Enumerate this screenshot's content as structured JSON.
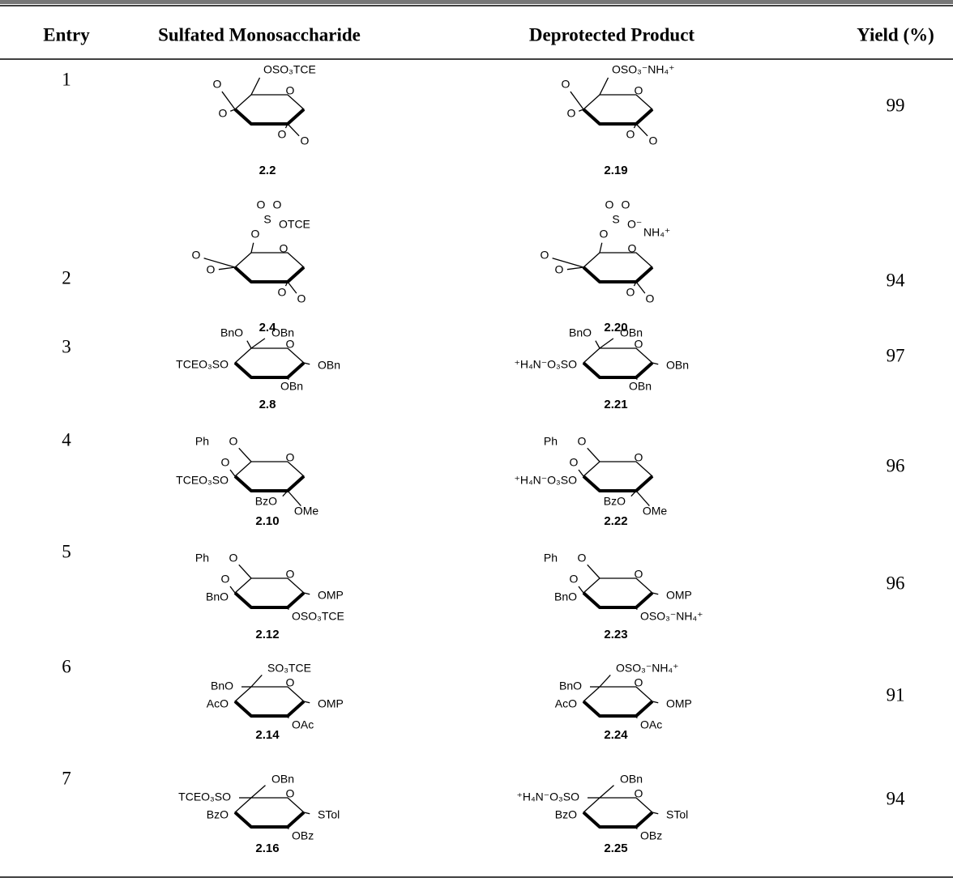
{
  "table": {
    "headers": [
      "Entry",
      "Sulfated Monosaccharide",
      "Deprotected Product",
      "Yield (%)"
    ],
    "rows": [
      {
        "entry": 1,
        "sulfated": {
          "label": "2.2",
          "atoms": [
            "O",
            "OSO₃TCE",
            "O",
            "O",
            "O",
            "O"
          ]
        },
        "product": {
          "label": "2.19",
          "atoms": [
            "O",
            "OSO₃⁻NH₄⁺",
            "O",
            "O",
            "O",
            "O"
          ]
        },
        "yield": 99
      },
      {
        "entry": 2,
        "sulfated": {
          "label": "2.4",
          "atoms": [
            "O",
            "O",
            "O",
            "S",
            "OTCE",
            "O",
            "O",
            "O",
            "O",
            "O"
          ]
        },
        "product": {
          "label": "2.20",
          "atoms": [
            "O",
            "O",
            "O",
            "S",
            "O⁻",
            "NH₄⁺",
            "O",
            "O",
            "O",
            "O",
            "O"
          ]
        },
        "yield": 94
      },
      {
        "entry": 3,
        "sulfated": {
          "label": "2.8",
          "atoms": [
            "BnO",
            "OBn",
            "O",
            "TCEO₃SO",
            "OBn",
            "OBn"
          ]
        },
        "product": {
          "label": "2.21",
          "atoms": [
            "BnO",
            "OBn",
            "O",
            "⁺H₄N⁻O₃SO",
            "OBn",
            "OBn"
          ]
        },
        "yield": 97
      },
      {
        "entry": 4,
        "sulfated": {
          "label": "2.10",
          "atoms": [
            "Ph",
            "O",
            "O",
            "O",
            "TCEO₃SO",
            "BzO",
            "OMe"
          ]
        },
        "product": {
          "label": "2.22",
          "atoms": [
            "Ph",
            "O",
            "O",
            "O",
            "⁺H₄N⁻O₃SO",
            "BzO",
            "OMe"
          ]
        },
        "yield": 96
      },
      {
        "entry": 5,
        "sulfated": {
          "label": "2.12",
          "atoms": [
            "Ph",
            "O",
            "O",
            "O",
            "BnO",
            "OMP",
            "OSO₃TCE"
          ]
        },
        "product": {
          "label": "2.23",
          "atoms": [
            "Ph",
            "O",
            "O",
            "O",
            "BnO",
            "OMP",
            "OSO₃⁻NH₄⁺"
          ]
        },
        "yield": 96
      },
      {
        "entry": 6,
        "sulfated": {
          "label": "2.14",
          "atoms": [
            "SO₃TCE",
            "BnO",
            "O",
            "AcO",
            "OMP",
            "OAc"
          ]
        },
        "product": {
          "label": "2.24",
          "atoms": [
            "OSO₃⁻NH₄⁺",
            "BnO",
            "O",
            "AcO",
            "OMP",
            "OAc"
          ]
        },
        "yield": 91
      },
      {
        "entry": 7,
        "sulfated": {
          "label": "2.16",
          "atoms": [
            "OBn",
            "TCEO₃SO",
            "O",
            "BzO",
            "STol",
            "OBz"
          ]
        },
        "product": {
          "label": "2.25",
          "atoms": [
            "OBn",
            "⁺H₄N⁻O₃SO",
            "O",
            "BzO",
            "STol",
            "OBz"
          ]
        },
        "yield": 94
      }
    ]
  }
}
